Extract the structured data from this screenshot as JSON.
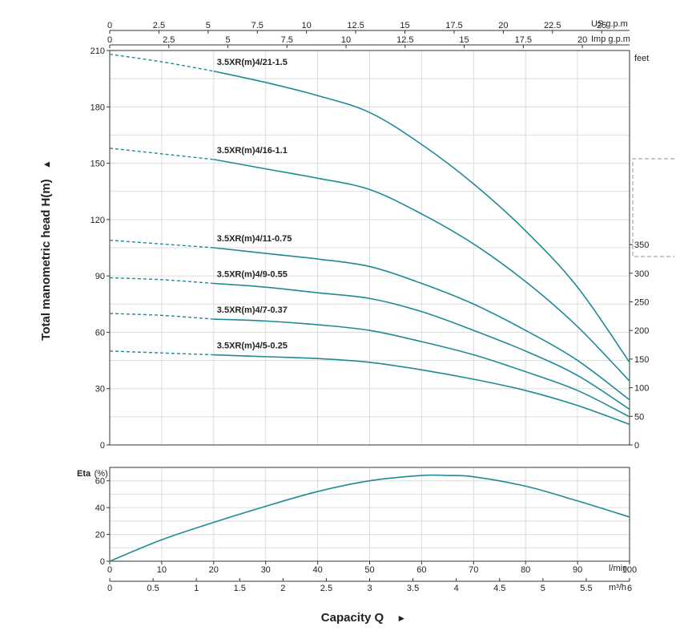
{
  "colors": {
    "curve": "#1f8a96",
    "grid": "#dcdcdc",
    "axis": "#333333",
    "text": "#222222"
  },
  "head_chart": {
    "ylabel": "Total manometric head H(m)",
    "ylabel_marker": "▲",
    "y_ticks": [
      "0",
      "30",
      "60",
      "90",
      "120",
      "150",
      "180",
      "210"
    ],
    "right_unit": "feet",
    "right_ticks": [
      "0",
      "50",
      "100",
      "150",
      "200",
      "250",
      "300",
      "350"
    ],
    "top_axis_1": {
      "unit": "US g.p.m",
      "ticks": [
        "0",
        "2.5",
        "5",
        "7.5",
        "10",
        "12.5",
        "15",
        "17.5",
        "20",
        "22.5",
        "25"
      ]
    },
    "top_axis_2": {
      "unit": "Imp g.p.m",
      "ticks": [
        "0",
        "2.5",
        "5",
        "7.5",
        "10",
        "12.5",
        "15",
        "17.5",
        "20"
      ]
    }
  },
  "eta_chart": {
    "label": "Eta",
    "unit": "(%)",
    "y_ticks": [
      "0",
      "20",
      "40",
      "60"
    ]
  },
  "x_axis": {
    "lmin_unit": "l/min",
    "lmin_ticks": [
      "0",
      "10",
      "20",
      "30",
      "40",
      "50",
      "60",
      "70",
      "80",
      "90",
      "100"
    ],
    "m3h_unit": "m³/h",
    "m3h_ticks": [
      "0",
      "0.5",
      "1",
      "1.5",
      "2",
      "2.5",
      "3",
      "3.5",
      "4",
      "4.5",
      "5",
      "5.5",
      "6"
    ],
    "title": "Capacity Q",
    "title_marker": "►"
  },
  "chart_data": [
    {
      "type": "line",
      "title": "",
      "xlabel": "Capacity Q (l/min)",
      "ylabel": "Total manometric head H(m)",
      "xlim": [
        0,
        100
      ],
      "ylim": [
        0,
        210
      ],
      "secondary_y": {
        "unit": "feet",
        "lim": [
          0,
          689
        ]
      },
      "grid": true,
      "dashed_segment_x": [
        0,
        20
      ],
      "series": [
        {
          "name": "3.5XR(m)4/21-1.5",
          "x": [
            0,
            10,
            20,
            30,
            40,
            50,
            60,
            70,
            80,
            90,
            100
          ],
          "y": [
            208,
            204,
            199,
            193,
            186,
            177,
            160,
            139,
            114,
            84,
            44
          ]
        },
        {
          "name": "3.5XR(m)4/16-1.1",
          "x": [
            0,
            10,
            20,
            30,
            40,
            50,
            60,
            70,
            80,
            90,
            100
          ],
          "y": [
            158,
            155,
            152,
            147,
            142,
            136,
            123,
            107,
            87,
            63,
            34
          ]
        },
        {
          "name": "3.5XR(m)4/11-0.75",
          "x": [
            0,
            10,
            20,
            30,
            40,
            50,
            60,
            70,
            80,
            90,
            100
          ],
          "y": [
            109,
            107,
            105,
            102,
            99,
            95,
            86,
            75,
            61,
            45,
            24
          ]
        },
        {
          "name": "3.5XR(m)4/9-0.55",
          "x": [
            0,
            10,
            20,
            30,
            40,
            50,
            60,
            70,
            80,
            90,
            100
          ],
          "y": [
            89,
            88,
            86,
            84,
            81,
            78,
            71,
            61,
            50,
            37,
            19
          ]
        },
        {
          "name": "3.5XR(m)4/7-0.37",
          "x": [
            0,
            10,
            20,
            30,
            40,
            50,
            60,
            70,
            80,
            90,
            100
          ],
          "y": [
            70,
            69,
            67,
            66,
            64,
            61,
            55,
            48,
            39,
            29,
            15
          ]
        },
        {
          "name": "3.5XR(m)4/5-0.25",
          "x": [
            0,
            10,
            20,
            30,
            40,
            50,
            60,
            70,
            80,
            90,
            100
          ],
          "y": [
            50,
            49,
            48,
            47,
            46,
            44,
            40,
            35,
            29,
            21,
            11
          ]
        }
      ]
    },
    {
      "type": "line",
      "title": "",
      "xlabel": "Capacity Q (l/min)",
      "ylabel": "Eta(%)",
      "xlim": [
        0,
        100
      ],
      "ylim": [
        0,
        70
      ],
      "grid": true,
      "series": [
        {
          "x": [
            0,
            10,
            20,
            30,
            40,
            50,
            60,
            65,
            70,
            80,
            90,
            100
          ],
          "y": [
            0,
            16,
            29,
            41,
            52,
            60,
            64,
            64,
            63,
            56,
            45,
            33
          ]
        }
      ]
    }
  ]
}
